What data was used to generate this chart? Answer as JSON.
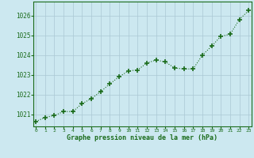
{
  "x": [
    0,
    1,
    2,
    3,
    4,
    5,
    6,
    7,
    8,
    9,
    10,
    11,
    12,
    13,
    14,
    15,
    16,
    17,
    18,
    19,
    20,
    21,
    22,
    23
  ],
  "y": [
    1020.65,
    1020.85,
    1020.95,
    1021.15,
    1021.15,
    1021.55,
    1021.8,
    1022.15,
    1022.55,
    1022.9,
    1023.2,
    1023.25,
    1023.6,
    1023.75,
    1023.65,
    1023.35,
    1023.3,
    1023.3,
    1024.0,
    1024.45,
    1024.95,
    1025.05,
    1025.8,
    1026.25
  ],
  "line_color": "#1a6b1a",
  "marker": "+",
  "marker_size": 4,
  "marker_linewidth": 1.2,
  "line_linewidth": 0.8,
  "bg_color": "#cce8f0",
  "grid_color": "#aac8d4",
  "ylim": [
    1020.4,
    1026.7
  ],
  "xlim": [
    -0.3,
    23.3
  ],
  "yticks": [
    1021,
    1022,
    1023,
    1024,
    1025,
    1026
  ],
  "xticks": [
    0,
    1,
    2,
    3,
    4,
    5,
    6,
    7,
    8,
    9,
    10,
    11,
    12,
    13,
    14,
    15,
    16,
    17,
    18,
    19,
    20,
    21,
    22,
    23
  ],
  "xlabel": "Graphe pression niveau de la mer (hPa)",
  "xlabel_color": "#1a6b1a",
  "tick_color": "#1a6b1a",
  "spine_color": "#1a6b1a",
  "figsize": [
    3.2,
    2.0
  ],
  "dpi": 100
}
